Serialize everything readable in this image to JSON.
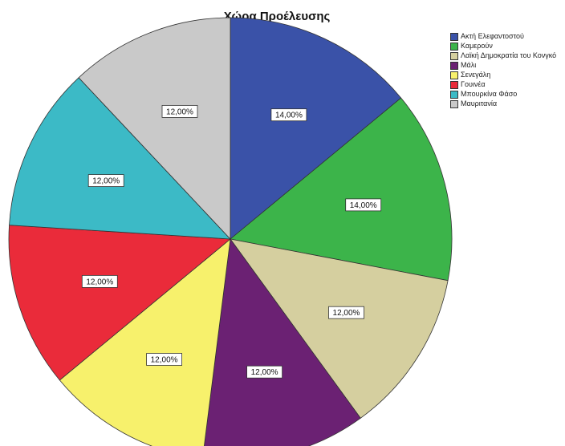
{
  "chart_data": {
    "type": "pie",
    "title": "Χώρα Προέλευσης",
    "slices": [
      {
        "label": "Ακτή Ελεφαντοστού",
        "value": 14.0,
        "display": "14,00%",
        "color": "#3a52a8"
      },
      {
        "label": "Καμερούν",
        "value": 14.0,
        "display": "14,00%",
        "color": "#3cb44a"
      },
      {
        "label": "Λαϊκή Δημοκρατία του Κονγκό",
        "value": 12.0,
        "display": "12,00%",
        "color": "#d5cf9f"
      },
      {
        "label": "Μάλι",
        "value": 12.0,
        "display": "12,00%",
        "color": "#6b2173"
      },
      {
        "label": "Σενεγάλη",
        "value": 12.0,
        "display": "12,00%",
        "color": "#f7f16c"
      },
      {
        "label": "Γουινέα",
        "value": 12.0,
        "display": "12,00%",
        "color": "#ea2b3a"
      },
      {
        "label": "Μπουρκίνα Φάσο",
        "value": 12.0,
        "display": "12,00%",
        "color": "#3cbac6"
      },
      {
        "label": "Μαυριτανία",
        "value": 12.0,
        "display": "12,00%",
        "color": "#c9c9c9"
      }
    ],
    "legend_position": "top-right",
    "start_angle": "12 o'clock",
    "direction": "clockwise"
  }
}
